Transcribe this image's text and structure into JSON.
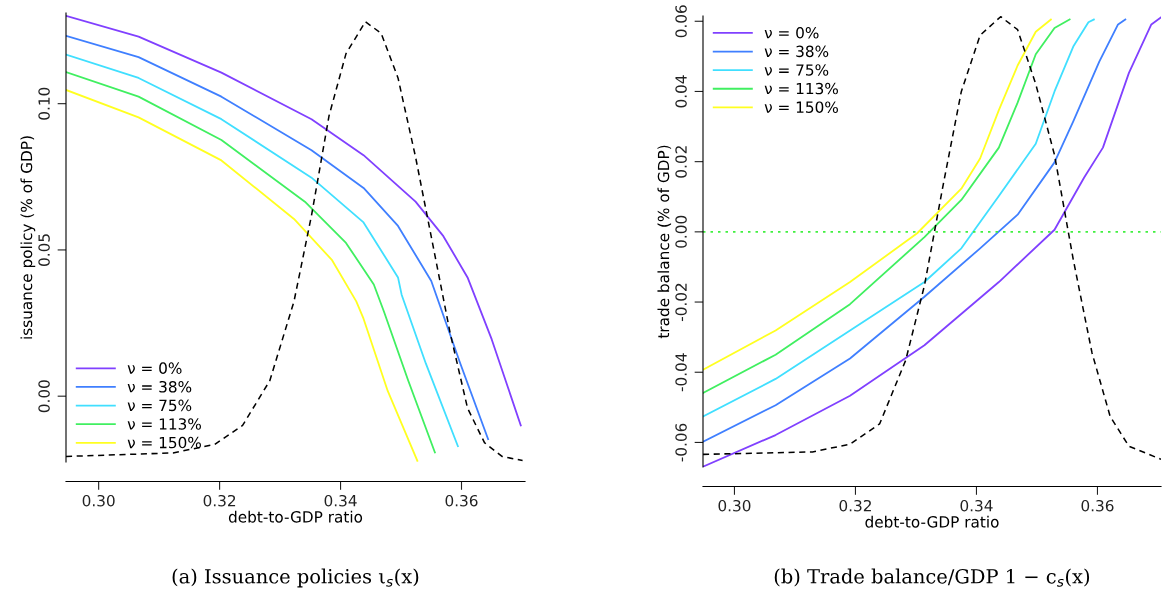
{
  "chart_data": [
    {
      "type": "line",
      "title": "(a) Issuance policies ι$_{s}$(x)",
      "xlabel": "debt-to-GDP ratio",
      "ylabel": "issuance policy (% of GDP)",
      "xlim": [
        0.2946,
        0.3705
      ],
      "ylim": [
        -0.0225,
        0.131
      ],
      "xticks": [
        {
          "value": 0.3,
          "label": "0.30"
        },
        0.32,
        0.34,
        0.36
      ],
      "yticks": [
        {
          "value": 0.0,
          "label": "0.00"
        },
        {
          "value": 0.05,
          "label": "0.05"
        },
        {
          "value": 0.1,
          "label": "0.10"
        }
      ],
      "legend": "bottom left",
      "grid": false,
      "series": [
        {
          "name": "ν = 0%",
          "color": "#8040ff",
          "x": [
            0.2946,
            0.3066,
            0.3203,
            0.3352,
            0.3438,
            0.3524,
            0.357,
            0.361,
            0.365,
            0.3698
          ],
          "values": [
            0.13,
            0.1229,
            0.1106,
            0.0947,
            0.0824,
            0.0665,
            0.0547,
            0.0406,
            0.0194,
            -0.01
          ]
        },
        {
          "name": "ν = 38%",
          "color": "#3f7fff",
          "x": [
            0.2946,
            0.3066,
            0.3203,
            0.3352,
            0.3438,
            0.3495,
            0.355,
            0.3598,
            0.3644
          ],
          "values": [
            0.1232,
            0.1159,
            0.1024,
            0.0841,
            0.0712,
            0.0582,
            0.0394,
            0.0112,
            -0.0147
          ]
        },
        {
          "name": "ν = 75%",
          "color": "#40dfff",
          "x": [
            0.2946,
            0.3066,
            0.3203,
            0.3352,
            0.3438,
            0.3495,
            0.3501,
            0.3541,
            0.3594
          ],
          "values": [
            0.1168,
            0.1088,
            0.0947,
            0.0747,
            0.0594,
            0.0406,
            0.0347,
            0.0112,
            -0.0171
          ]
        },
        {
          "name": "ν = 113%",
          "color": "#40ef60",
          "x": [
            0.2946,
            0.3066,
            0.3203,
            0.3341,
            0.3409,
            0.3455,
            0.3472,
            0.3512,
            0.3556
          ],
          "values": [
            0.1108,
            0.1024,
            0.0876,
            0.0665,
            0.0524,
            0.0382,
            0.0288,
            0.0053,
            -0.0192
          ]
        },
        {
          "name": "ν = 150%",
          "color": "#ffff20",
          "x": [
            0.2946,
            0.3066,
            0.3203,
            0.3323,
            0.3386,
            0.3426,
            0.3438,
            0.3478,
            0.3527
          ],
          "values": [
            0.1047,
            0.0953,
            0.0806,
            0.0606,
            0.0465,
            0.0324,
            0.0265,
            0.0018,
            -0.0221
          ]
        },
        {
          "color": "#000000",
          "line_style": "dashed",
          "x": [
            0.2946,
            0.3123,
            0.3192,
            0.3238,
            0.3283,
            0.3323,
            0.3352,
            0.3381,
            0.3409,
            0.3441,
            0.3467,
            0.3495,
            0.3524,
            0.3552,
            0.3581,
            0.361,
            0.3638,
            0.3667,
            0.3701
          ],
          "values": [
            -0.0206,
            -0.0194,
            -0.0165,
            -0.01,
            0.0053,
            0.0324,
            0.0618,
            0.0959,
            0.1171,
            0.128,
            0.1241,
            0.1088,
            0.0818,
            0.0524,
            0.0218,
            -0.0041,
            -0.0159,
            -0.0206,
            -0.022
          ]
        }
      ]
    },
    {
      "type": "line",
      "title": "(b) Trade balance/GDP 1 − c$_{s}$(x)",
      "xlabel": "debt-to-GDP ratio",
      "ylabel": "trade balance (% of GDP)",
      "xlim": [
        0.2948,
        0.3705
      ],
      "ylim": [
        -0.067,
        0.0615
      ],
      "xticks": [
        {
          "value": 0.3,
          "label": "0.30"
        },
        0.32,
        0.34,
        0.36
      ],
      "yticks": [
        {
          "value": -0.06,
          "label": "-0.06"
        },
        {
          "value": -0.04,
          "label": "-0.04"
        },
        {
          "value": -0.02,
          "label": "-0.02"
        },
        {
          "value": 0.0,
          "label": "0.00"
        },
        {
          "value": 0.02,
          "label": "0.02"
        },
        {
          "value": 0.04,
          "label": "0.04"
        },
        {
          "value": 0.06,
          "label": "0.06"
        }
      ],
      "legend": "top left",
      "grid": false,
      "ref_lines": [
        {
          "axis": "y",
          "value": 0,
          "color": "#40f040",
          "line_style": "dotted"
        }
      ],
      "series": [
        {
          "name": "ν = 0%",
          "color": "#8040ff",
          "x": [
            0.2948,
            0.3068,
            0.3191,
            0.3314,
            0.3437,
            0.3529,
            0.3578,
            0.3609,
            0.3652,
            0.3689,
            0.3705
          ],
          "values": [
            -0.0669,
            -0.0579,
            -0.0467,
            -0.0323,
            -0.0143,
            0.0006,
            0.0155,
            0.024,
            0.0453,
            0.0591,
            0.0611
          ]
        },
        {
          "name": "ν = 38%",
          "color": "#3f7fff",
          "x": [
            0.2948,
            0.3068,
            0.3191,
            0.3314,
            0.3406,
            0.3468,
            0.3529,
            0.356,
            0.3603,
            0.3634,
            0.3646
          ],
          "values": [
            -0.0598,
            -0.0494,
            -0.0361,
            -0.0185,
            -0.0047,
            0.0049,
            0.0198,
            0.0315,
            0.0485,
            0.0591,
            0.0605
          ]
        },
        {
          "name": "ν = 75%",
          "color": "#40dfff",
          "x": [
            0.2948,
            0.3068,
            0.3191,
            0.3314,
            0.3375,
            0.3437,
            0.3498,
            0.3529,
            0.356,
            0.3585,
            0.3594
          ],
          "values": [
            -0.0526,
            -0.0419,
            -0.0281,
            -0.0143,
            -0.0047,
            0.0102,
            0.0251,
            0.04,
            0.0528,
            0.0597,
            0.0605
          ]
        },
        {
          "name": "ν = 113%",
          "color": "#40ef60",
          "x": [
            0.2948,
            0.3068,
            0.3191,
            0.3314,
            0.3375,
            0.3437,
            0.3468,
            0.3498,
            0.3529,
            0.3554
          ],
          "values": [
            -0.0459,
            -0.035,
            -0.0206,
            -0.0015,
            0.0091,
            0.024,
            0.0368,
            0.0506,
            0.0581,
            0.0605
          ]
        },
        {
          "name": "ν = 150%",
          "color": "#ffff20",
          "x": [
            0.2948,
            0.3068,
            0.3191,
            0.3302,
            0.3375,
            0.3406,
            0.3437,
            0.3468,
            0.3498,
            0.3523
          ],
          "values": [
            -0.0393,
            -0.0281,
            -0.0143,
            -0.0004,
            0.0123,
            0.0209,
            0.0347,
            0.0474,
            0.057,
            0.0605
          ]
        },
        {
          "color": "#000000",
          "line_style": "dashed",
          "x": [
            0.2948,
            0.3129,
            0.3191,
            0.324,
            0.3283,
            0.3314,
            0.3345,
            0.3375,
            0.3406,
            0.344,
            0.3468,
            0.3498,
            0.3529,
            0.356,
            0.3591,
            0.3621,
            0.3652,
            0.3705
          ],
          "values": [
            -0.0634,
            -0.0627,
            -0.0605,
            -0.0547,
            -0.0366,
            -0.0153,
            0.0134,
            0.04,
            0.056,
            0.0613,
            0.0576,
            0.0421,
            0.0219,
            -0.0079,
            -0.0345,
            -0.0526,
            -0.0611,
            -0.0648
          ]
        }
      ]
    }
  ]
}
